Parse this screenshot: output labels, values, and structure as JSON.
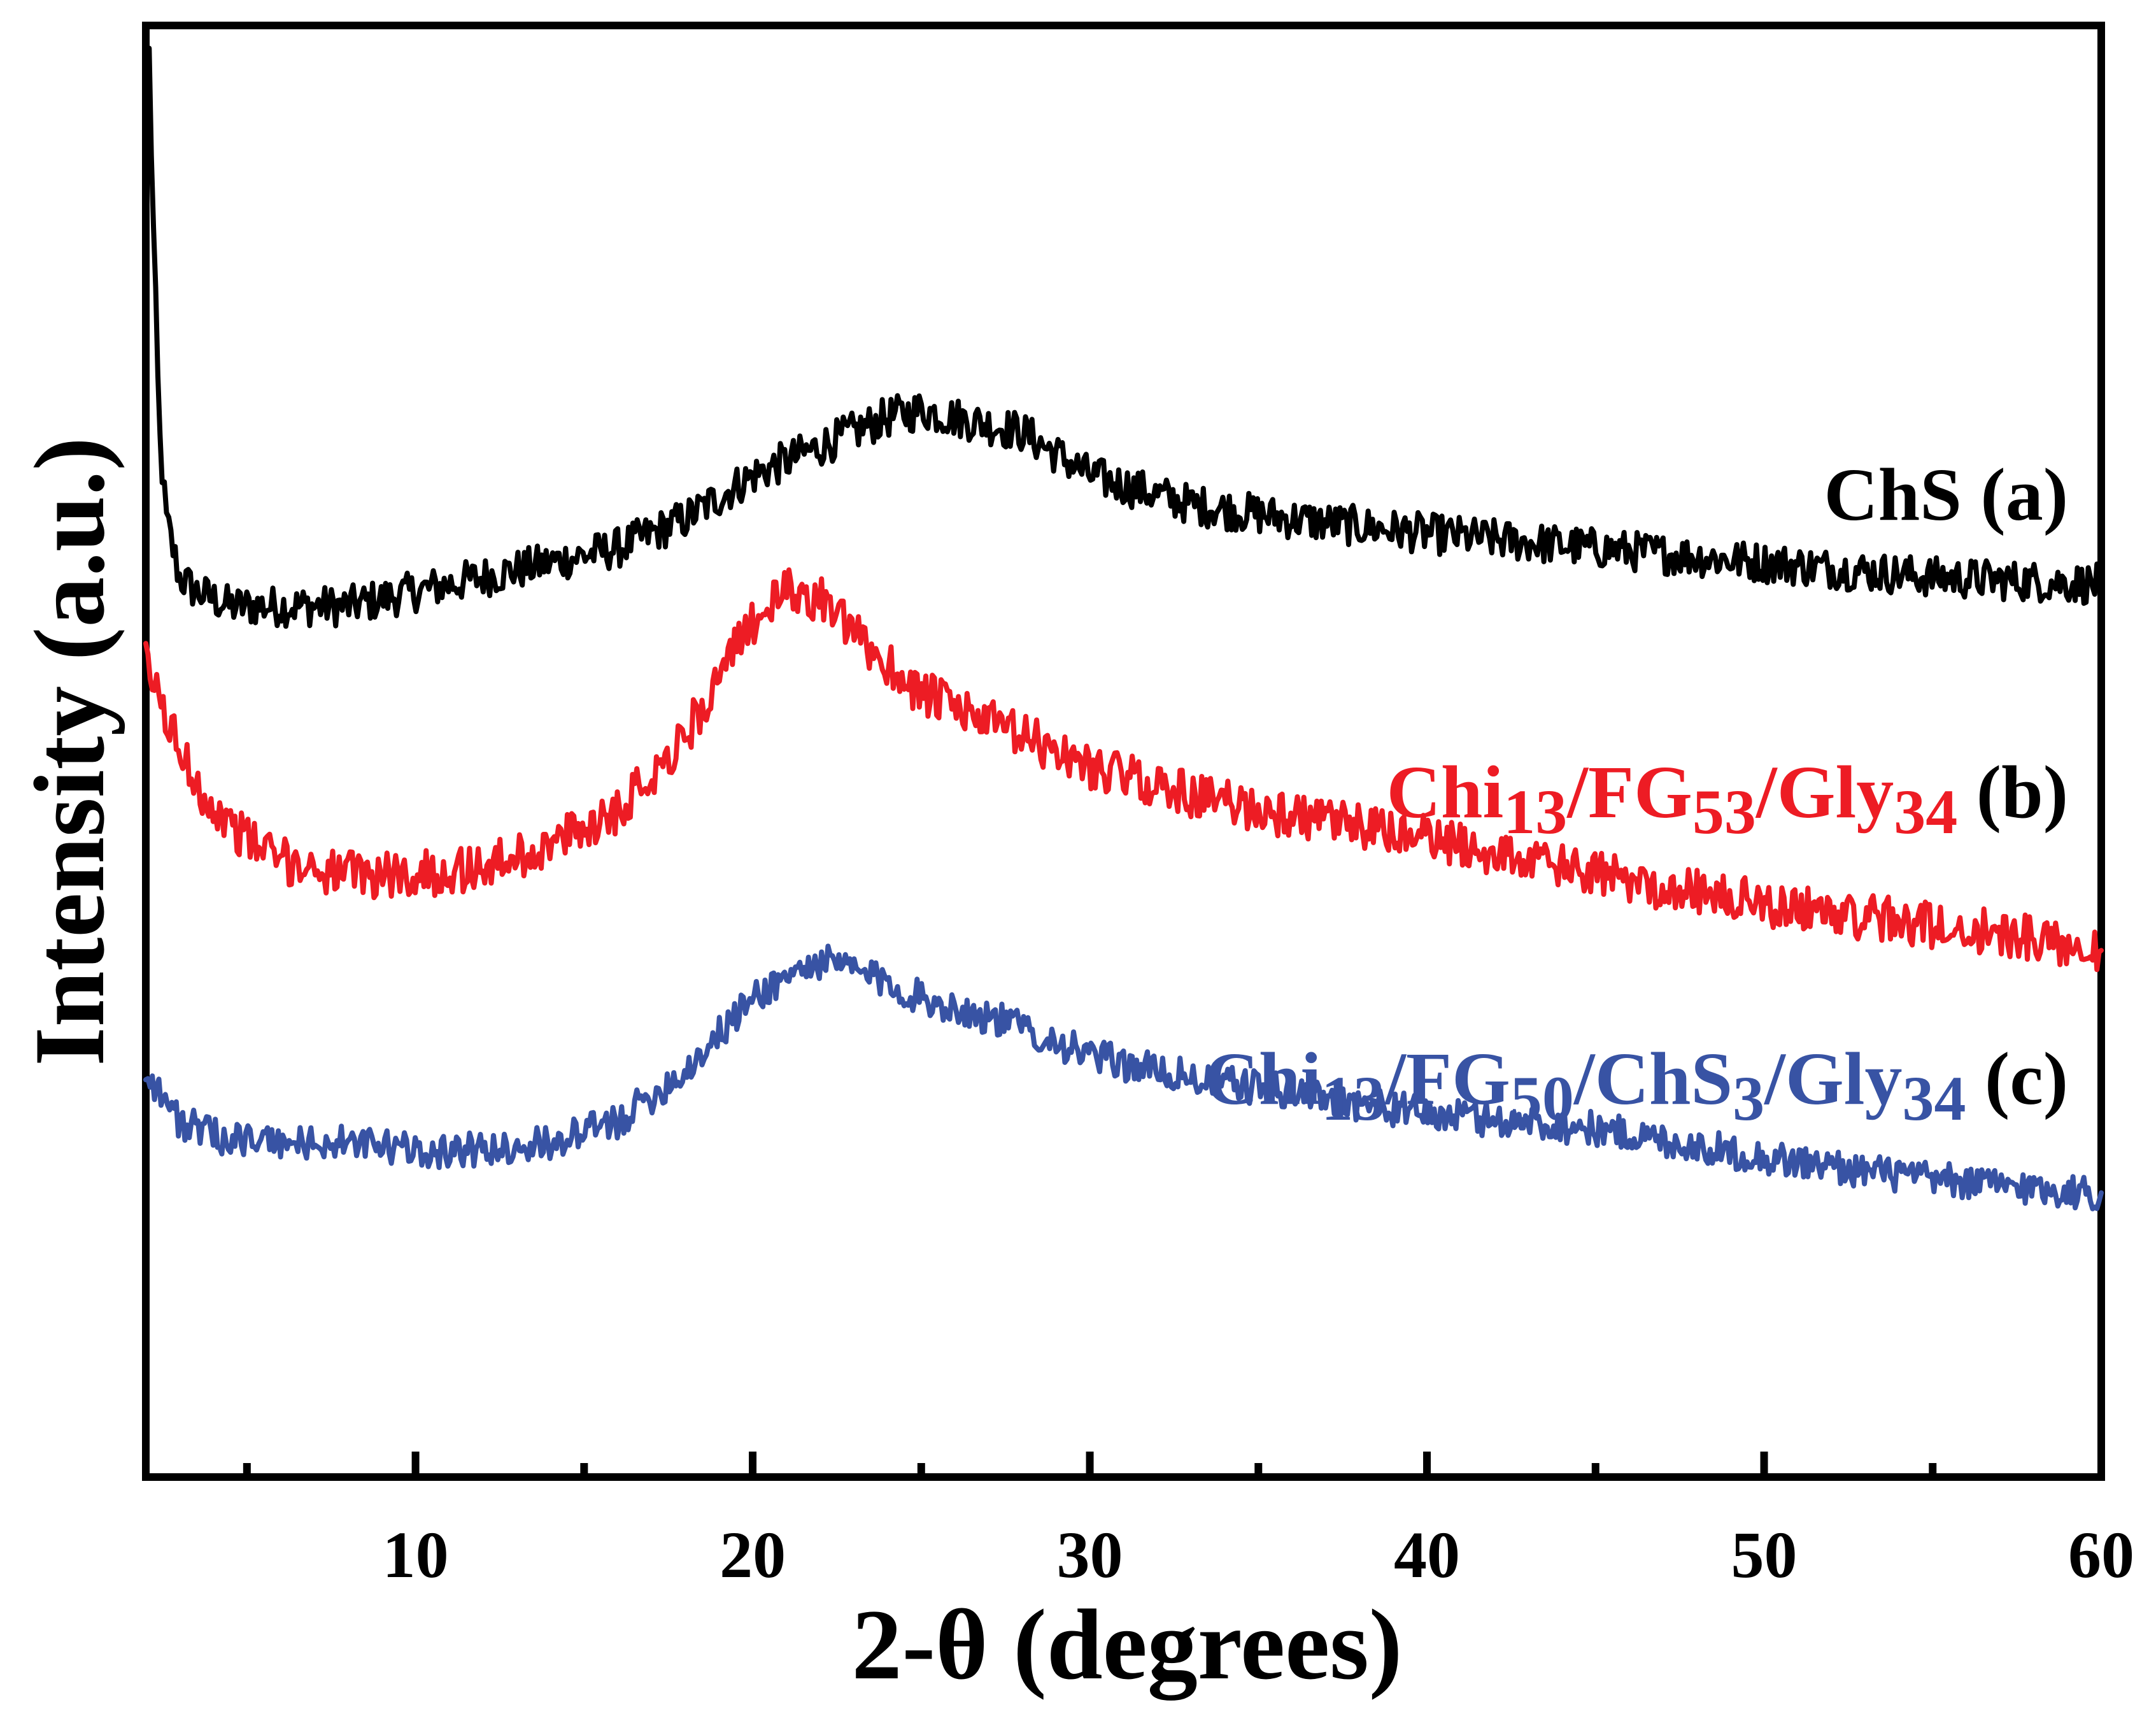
{
  "chart_data": {
    "type": "line",
    "title": "",
    "xlabel": "2-θ (degrees)",
    "ylabel": "Intensity (a.u.)",
    "xlim": [
      2,
      60
    ],
    "ylim": [
      0,
      100
    ],
    "xticks": [
      10,
      20,
      30,
      40,
      50,
      60
    ],
    "minor_xticks": [
      5,
      15,
      25,
      35,
      45,
      55
    ],
    "yticks_shown": false,
    "grid": false,
    "series": [
      {
        "id": "a",
        "color": "#000000",
        "label_parts": [
          {
            "text": "ChS",
            "sub": false
          },
          {
            "text": " (a)",
            "sub": false
          }
        ],
        "noise": 1.4,
        "points": [
          [
            2.1,
            98
          ],
          [
            2.2,
            88
          ],
          [
            2.4,
            72
          ],
          [
            2.6,
            66
          ],
          [
            3.0,
            62
          ],
          [
            3.5,
            61
          ],
          [
            4.5,
            60
          ],
          [
            6,
            60
          ],
          [
            8,
            60
          ],
          [
            10,
            61
          ],
          [
            12,
            62
          ],
          [
            14,
            63
          ],
          [
            16,
            64
          ],
          [
            18,
            66
          ],
          [
            20,
            69
          ],
          [
            22,
            71
          ],
          [
            24,
            73
          ],
          [
            25,
            73.5
          ],
          [
            26,
            73
          ],
          [
            28,
            72
          ],
          [
            30,
            69
          ],
          [
            33,
            67
          ],
          [
            36,
            66
          ],
          [
            40,
            65
          ],
          [
            45,
            64
          ],
          [
            50,
            63
          ],
          [
            55,
            62
          ],
          [
            60,
            61.5
          ]
        ]
      },
      {
        "id": "b",
        "color": "#ED1C24",
        "label_parts": [
          {
            "text": "Chi",
            "sub": false
          },
          {
            "text": "13",
            "sub": true
          },
          {
            "text": "/FG",
            "sub": false
          },
          {
            "text": "53",
            "sub": true
          },
          {
            "text": "/Gly",
            "sub": false
          },
          {
            "text": "34",
            "sub": true
          },
          {
            "text": " (b)",
            "sub": false
          }
        ],
        "noise": 1.6,
        "points": [
          [
            2,
            56
          ],
          [
            3,
            50
          ],
          [
            4,
            46
          ],
          [
            5,
            44
          ],
          [
            6,
            42.5
          ],
          [
            8,
            41.5
          ],
          [
            10,
            41.5
          ],
          [
            12,
            42
          ],
          [
            14,
            43.5
          ],
          [
            16,
            46
          ],
          [
            18,
            51
          ],
          [
            19,
            55
          ],
          [
            20,
            59
          ],
          [
            21,
            61
          ],
          [
            22,
            60.5
          ],
          [
            23,
            58
          ],
          [
            25,
            54
          ],
          [
            27,
            52
          ],
          [
            30,
            49
          ],
          [
            33,
            47
          ],
          [
            36,
            45.5
          ],
          [
            40,
            44
          ],
          [
            45,
            41.5
          ],
          [
            50,
            39.5
          ],
          [
            55,
            38
          ],
          [
            60,
            36.5
          ]
        ]
      },
      {
        "id": "c",
        "color": "#3853A4",
        "label_parts": [
          {
            "text": "Chi",
            "sub": false
          },
          {
            "text": "13",
            "sub": true
          },
          {
            "text": "/FG",
            "sub": false
          },
          {
            "text": "50",
            "sub": true
          },
          {
            "text": "/ChS",
            "sub": false
          },
          {
            "text": "3",
            "sub": true
          },
          {
            "text": "/Gly",
            "sub": false
          },
          {
            "text": "34",
            "sub": true
          },
          {
            "text": " (c)",
            "sub": false
          }
        ],
        "noise": 1.2,
        "points": [
          [
            2,
            28
          ],
          [
            3,
            24.5
          ],
          [
            4,
            23.5
          ],
          [
            6,
            23
          ],
          [
            8,
            23
          ],
          [
            10,
            22.5
          ],
          [
            12,
            22.5
          ],
          [
            14,
            23
          ],
          [
            16,
            24.5
          ],
          [
            18,
            28
          ],
          [
            20,
            33
          ],
          [
            21,
            34.5
          ],
          [
            22,
            35.5
          ],
          [
            23,
            35
          ],
          [
            25,
            33
          ],
          [
            28,
            31
          ],
          [
            30,
            29
          ],
          [
            33,
            27.5
          ],
          [
            36,
            26.5
          ],
          [
            40,
            25
          ],
          [
            45,
            24
          ],
          [
            50,
            22
          ],
          [
            55,
            20.5
          ],
          [
            60,
            19.5
          ]
        ]
      }
    ]
  }
}
